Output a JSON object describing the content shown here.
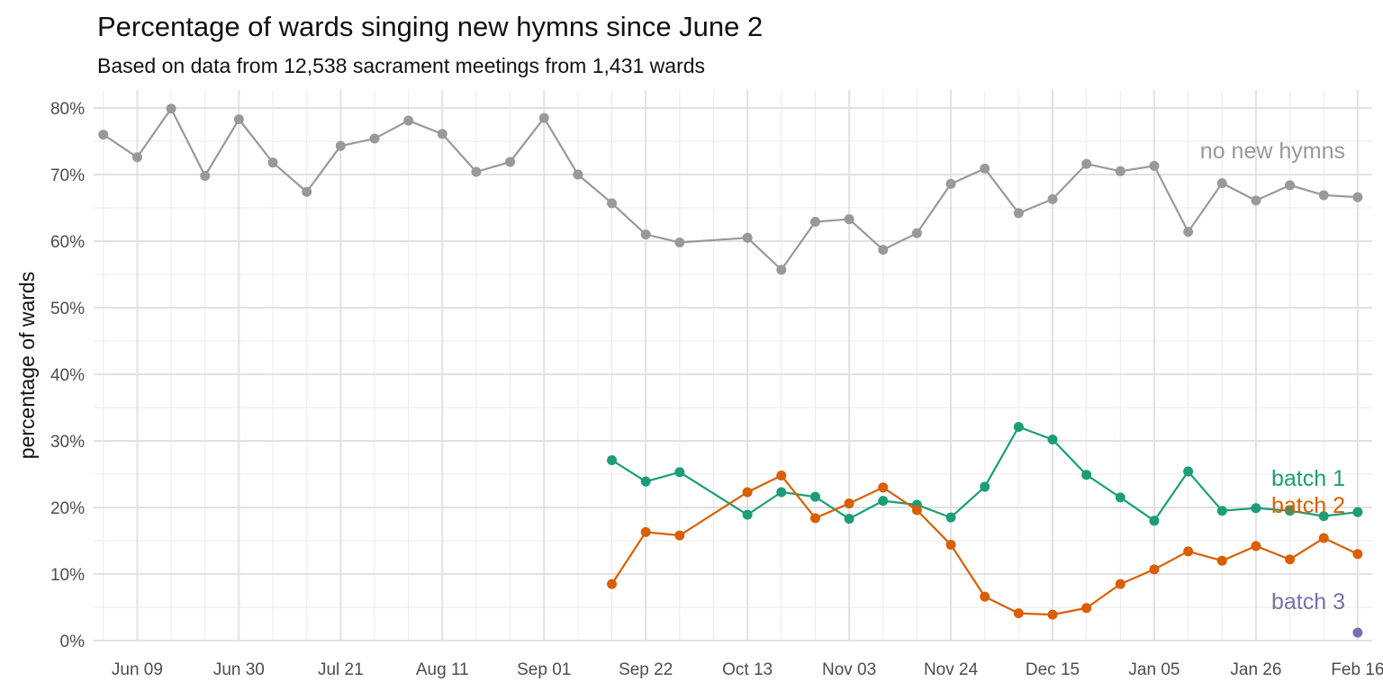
{
  "chart_data": {
    "type": "line",
    "title": "Percentage of wards singing new hymns since June 2",
    "subtitle": "Based on data from 12,538 sacrament meetings from 1,431 wards",
    "xlabel": "",
    "ylabel": "percentage of wards",
    "x_tick_labels": [
      "Jun 09",
      "Jun 30",
      "Jul 21",
      "Aug 11",
      "Sep 01",
      "Sep 22",
      "Oct 13",
      "Nov 03",
      "Nov 24",
      "Dec 15",
      "Jan 05",
      "Jan 26",
      "Feb 16"
    ],
    "y_tick_labels": [
      "0%",
      "10%",
      "20%",
      "30%",
      "40%",
      "50%",
      "60%",
      "70%",
      "80%"
    ],
    "ylim": [
      0,
      80
    ],
    "xlim": [
      "2024-05-31",
      "2025-02-19"
    ],
    "grid": true,
    "series": [
      {
        "name": "no new hymns",
        "color": "#999999",
        "x": [
          "2024-06-02",
          "2024-06-09",
          "2024-06-16",
          "2024-06-23",
          "2024-06-30",
          "2024-07-07",
          "2024-07-14",
          "2024-07-21",
          "2024-07-28",
          "2024-08-04",
          "2024-08-11",
          "2024-08-18",
          "2024-08-25",
          "2024-09-01",
          "2024-09-08",
          "2024-09-15",
          "2024-09-22",
          "2024-09-29",
          "2024-10-13",
          "2024-10-20",
          "2024-10-27",
          "2024-11-03",
          "2024-11-10",
          "2024-11-17",
          "2024-11-24",
          "2024-12-01",
          "2024-12-08",
          "2024-12-15",
          "2024-12-22",
          "2024-12-29",
          "2025-01-05",
          "2025-01-12",
          "2025-01-19",
          "2025-01-26",
          "2025-02-02",
          "2025-02-09",
          "2025-02-16"
        ],
        "values": [
          76.0,
          72.6,
          79.9,
          69.8,
          78.3,
          71.8,
          67.4,
          74.3,
          75.4,
          78.1,
          76.1,
          70.4,
          71.9,
          78.5,
          70.0,
          65.7,
          61.0,
          59.8,
          60.5,
          55.7,
          62.9,
          63.3,
          58.7,
          61.2,
          68.6,
          70.9,
          64.2,
          66.3,
          71.6,
          70.5,
          71.3,
          61.4,
          68.7,
          66.1,
          68.4,
          66.9,
          66.6
        ]
      },
      {
        "name": "batch 1",
        "color": "#1b9e77",
        "x": [
          "2024-09-15",
          "2024-09-22",
          "2024-09-29",
          "2024-10-13",
          "2024-10-20",
          "2024-10-27",
          "2024-11-03",
          "2024-11-10",
          "2024-11-17",
          "2024-11-24",
          "2024-12-01",
          "2024-12-08",
          "2024-12-15",
          "2024-12-22",
          "2024-12-29",
          "2025-01-05",
          "2025-01-12",
          "2025-01-19",
          "2025-01-26",
          "2025-02-02",
          "2025-02-09",
          "2025-02-16"
        ],
        "values": [
          27.1,
          23.9,
          25.3,
          18.9,
          22.3,
          21.6,
          18.3,
          21.0,
          20.4,
          18.5,
          23.1,
          32.1,
          30.2,
          24.9,
          21.5,
          18.0,
          25.4,
          19.5,
          19.9,
          19.5,
          18.7,
          19.3
        ]
      },
      {
        "name": "batch 2",
        "color": "#d95f02",
        "x": [
          "2024-09-15",
          "2024-09-22",
          "2024-09-29",
          "2024-10-13",
          "2024-10-20",
          "2024-10-27",
          "2024-11-03",
          "2024-11-10",
          "2024-11-17",
          "2024-11-24",
          "2024-12-01",
          "2024-12-08",
          "2024-12-15",
          "2024-12-22",
          "2024-12-29",
          "2025-01-05",
          "2025-01-12",
          "2025-01-19",
          "2025-01-26",
          "2025-02-02",
          "2025-02-09",
          "2025-02-16"
        ],
        "values": [
          8.5,
          16.3,
          15.8,
          22.3,
          24.8,
          18.4,
          20.6,
          23.0,
          19.6,
          14.4,
          6.6,
          4.1,
          3.9,
          4.9,
          8.5,
          10.7,
          13.4,
          12.0,
          14.2,
          12.2,
          15.4,
          13.0
        ]
      },
      {
        "name": "batch 3",
        "color": "#7570b3",
        "x": [
          "2025-02-16"
        ],
        "values": [
          1.2
        ]
      }
    ],
    "legend": "direct labels at right"
  }
}
